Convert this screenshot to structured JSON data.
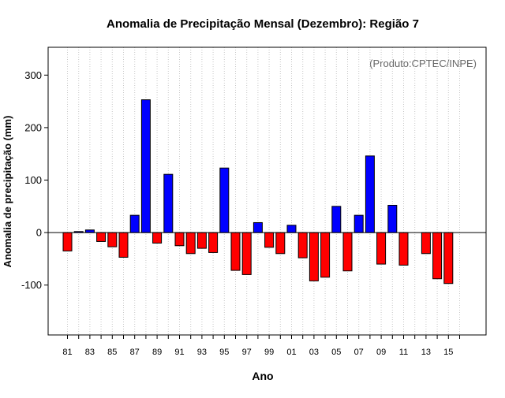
{
  "chart_data": {
    "type": "bar",
    "title": "Anomalia de Precipitação Mensal (Dezembro): Região 7",
    "annotation": "(Produto:CPTEC/INPE)",
    "xlabel": "Ano",
    "ylabel": "Anomalia de precipitação (mm)",
    "ylim": [
      -195,
      353
    ],
    "yticks": [
      -100,
      0,
      100,
      200,
      300
    ],
    "ytick_labels": [
      "-100",
      "0",
      "100",
      "200",
      "300"
    ],
    "grid": "vertical dotted lines at each year",
    "positive_color": "#0000ff",
    "negative_color": "#ff0000",
    "categories": [
      "1981",
      "1982",
      "1983",
      "1984",
      "1985",
      "1986",
      "1987",
      "1988",
      "1989",
      "1990",
      "1991",
      "1992",
      "1993",
      "1994",
      "1995",
      "1996",
      "1997",
      "1998",
      "1999",
      "2000",
      "2001",
      "2002",
      "2003",
      "2004",
      "2005",
      "2006",
      "2007",
      "2008",
      "2009",
      "2010",
      "2011",
      "2012",
      "2013",
      "2014",
      "2015"
    ],
    "xtick_labels": [
      "81",
      "83",
      "85",
      "87",
      "89",
      "91",
      "93",
      "95",
      "97",
      "99",
      "01",
      "03",
      "05",
      "07",
      "09",
      "11",
      "13",
      "15"
    ],
    "values": [
      -35,
      2,
      5,
      -17,
      -27,
      -47,
      33,
      253,
      -20,
      111,
      -25,
      -40,
      -30,
      -38,
      123,
      -72,
      -80,
      19,
      -28,
      -40,
      14,
      -48,
      -92,
      -85,
      50,
      -73,
      33,
      146,
      -60,
      52,
      -62,
      0,
      -40,
      -88,
      -97
    ]
  }
}
